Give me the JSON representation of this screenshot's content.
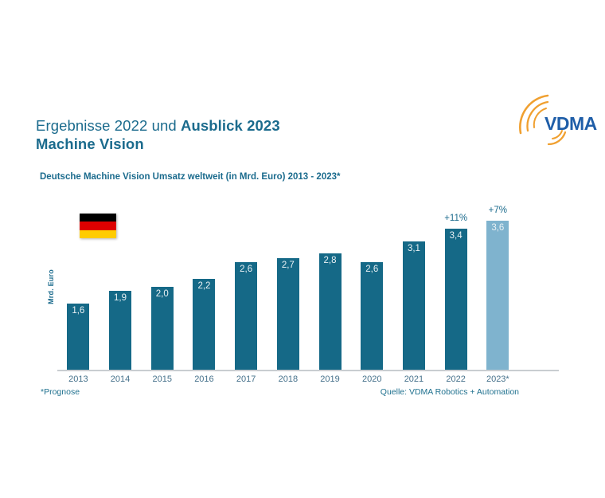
{
  "slide": {
    "title_line1_regular": "Ergebnisse 2022 und ",
    "title_line1_bold": "Ausblick 2023",
    "title_line2": "Machine Vision",
    "subtitle": "Deutsche Machine Vision Umsatz weltweit (in Mrd. Euro) 2013 - 2023*",
    "footnote": "*Prognose",
    "source": "Quelle: VDMA Robotics + Automation",
    "logo_text": "VDMA"
  },
  "colors": {
    "teal_text": "#1B6B8D",
    "bar_dark": "#156987",
    "bar_light": "#7FB3CE",
    "axis_line": "#C9CDD1",
    "year_label": "#44708A",
    "logo_blue": "#1F5EA8",
    "logo_orange": "#F0A030",
    "flag_black": "#000000",
    "flag_red": "#DD0000",
    "flag_gold": "#FFCC00"
  },
  "chart_data": {
    "type": "bar",
    "title": "Deutsche Machine Vision Umsatz weltweit (in Mrd. Euro) 2013 - 2023*",
    "xlabel": "",
    "ylabel": "Mrd. Euro",
    "grid": false,
    "legend": false,
    "ylim": [
      0,
      4
    ],
    "categories": [
      "2013",
      "2014",
      "2015",
      "2016",
      "2017",
      "2018",
      "2019",
      "2020",
      "2021",
      "2022",
      "2023*"
    ],
    "values": [
      1.6,
      1.9,
      2.0,
      2.2,
      2.6,
      2.7,
      2.8,
      2.6,
      3.1,
      3.4,
      3.6
    ],
    "value_labels": [
      "1,6",
      "1,9",
      "2,0",
      "2,2",
      "2,6",
      "2,7",
      "2,8",
      "2,6",
      "3,1",
      "3,4",
      "3,6"
    ],
    "growth_labels": {
      "2022": "+11%",
      "2023*": "+7%"
    },
    "highlight_last_bar": true,
    "annotations": [
      "* = Prognose (forecast), letzter Balken hellblau hervorgehoben"
    ]
  }
}
